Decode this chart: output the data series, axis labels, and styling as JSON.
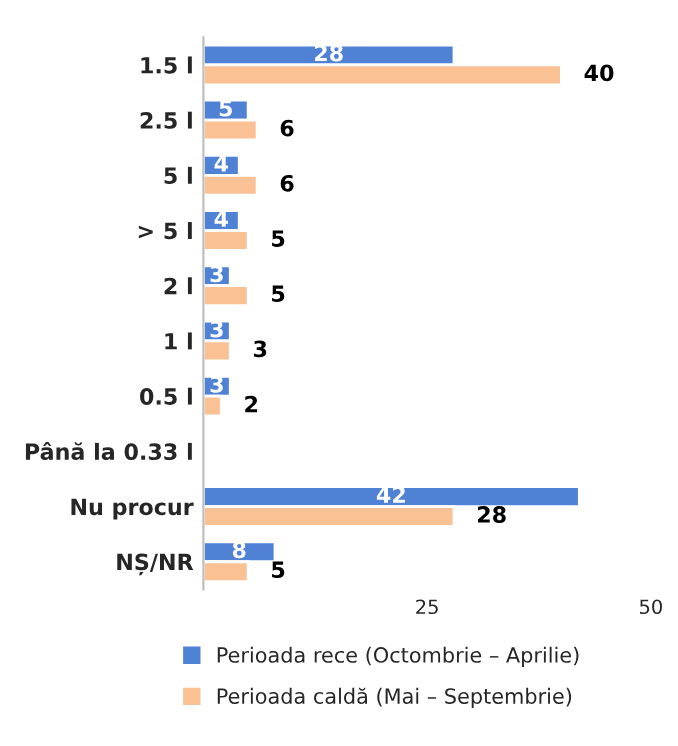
{
  "chart_data": {
    "type": "bar",
    "orientation": "horizontal",
    "categories": [
      "1.5 l",
      "2.5 l",
      "5 l",
      "> 5 l",
      "2 l",
      "1 l",
      "0.5 l",
      "Până la 0.33 l",
      "Nu procur",
      "NȘ/NR"
    ],
    "series": [
      {
        "name": "Perioada rece (Octombrie – Aprilie)",
        "color": "#4f81d4",
        "values": [
          28,
          5,
          4,
          4,
          3,
          3,
          3,
          0.3,
          42,
          8
        ],
        "value_labels": [
          "28",
          "5",
          "4",
          "4",
          "3",
          "3",
          "3",
          null,
          "42",
          "8"
        ]
      },
      {
        "name": "Perioada caldă (Mai – Septembrie)",
        "color": "#f9c194",
        "values": [
          40,
          6,
          6,
          5,
          5,
          3,
          2,
          0.3,
          28,
          5
        ],
        "value_labels": [
          "40",
          "6",
          "6",
          "5",
          "5",
          "3",
          "2",
          null,
          "28",
          "5"
        ]
      }
    ],
    "xlim": [
      0,
      50
    ],
    "xticks": [
      25,
      50
    ],
    "grid": false,
    "legend": "bottom"
  }
}
